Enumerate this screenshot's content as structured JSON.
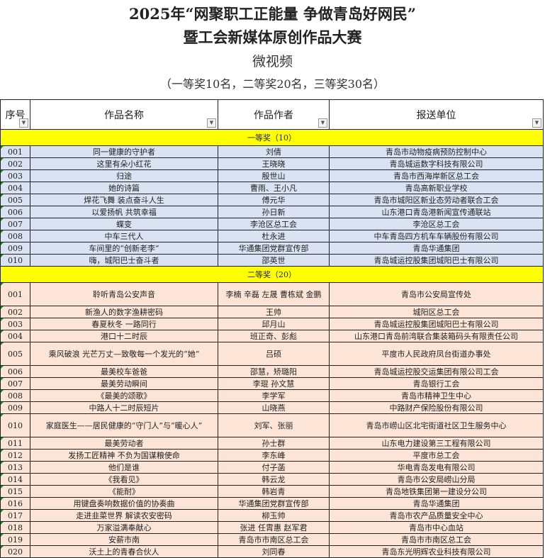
{
  "title": {
    "line1": "2025年“网聚职工正能量 争做青岛好网民”",
    "line2": "暨工会新媒体原创作品大赛",
    "category": "微视频",
    "awards_note": "（一等奖10名，二等奖20名，三等奖30名）"
  },
  "columns": [
    "序号",
    "作品名称",
    "作品作者",
    "报送单位"
  ],
  "icons": {
    "filter": "dropdown-filter-icon"
  },
  "colors": {
    "group_header": "#ffff00",
    "first_prize_rows": "#dae3f3",
    "second_prize_rows": "#fce4d6"
  },
  "groups": [
    {
      "label": "一等奖（10）",
      "rows": [
        [
          "001",
          "同一健康的守护者",
          "刘倩",
          "青岛市动物疫病预防控制中心"
        ],
        [
          "002",
          "这里有朵小红花",
          "王晓晓",
          "青岛城运数字科技有限公司"
        ],
        [
          "003",
          "归途",
          "殷世山",
          "青岛市西海岸新区总工会"
        ],
        [
          "004",
          "她的诗篇",
          "曹雨、王小凡",
          "青岛高新职业学校"
        ],
        [
          "005",
          "焊花飞舞 装点奋斗人生",
          "傅元华",
          "青岛市城阳区新业态劳动者联合工会"
        ],
        [
          "006",
          "以爱扬帆 共筑幸福",
          "孙日新",
          "山东港口青岛港新闻宣传通联站"
        ],
        [
          "007",
          "蝶变",
          "李沧区总工会",
          "李沧区总工会"
        ],
        [
          "008",
          "中车三代人",
          "杜永进",
          "中车青岛四方机车车辆股份有限公司"
        ],
        [
          "009",
          "车间里的“创新老李”",
          "华通集团党群宣传部",
          "青岛华通集团"
        ],
        [
          "010",
          "嗨，城阳巴士奋斗者",
          "邵英世",
          "青岛城运控股集团城阳巴士有限公司"
        ]
      ]
    },
    {
      "label": "二等奖（20）",
      "rows": [
        [
          "001",
          "聆听青岛公安声音",
          "李楠 辛磊 左晟 曹栋斌 金鹏",
          "青岛市公安局宣传处"
        ],
        [
          "002",
          "新渔人的数字渔耕密码",
          "王帅",
          "城阳区总工会"
        ],
        [
          "003",
          "春夏秋冬 一路同行",
          "邱月山",
          "青岛城运控股集团城阳巴士有限公司"
        ],
        [
          "004",
          "港口十二时辰",
          "班正奇、彭彪",
          "山东港口青岛前湾联合集装箱码头有限责任公司"
        ],
        [
          "005",
          "乘风破浪 光芒万丈—致敬每一个发光的“她”",
          "吕硕",
          "平度市人民政府凤台街道办事处"
        ],
        [
          "006",
          "最美校车爸爸",
          "邵慧，矫璐阳",
          "青岛城运控股交运集团有限公司工会"
        ],
        [
          "007",
          "最美劳动瞬间",
          "李琨 孙文慧",
          "青岛银行工会"
        ],
        [
          "008",
          "《最美的颂歌》",
          "李学军",
          "青岛市精神卫生中心"
        ],
        [
          "009",
          "中路人十二时辰短片",
          "山晓燕",
          "中路财产保险股份有限公司"
        ],
        [
          "010",
          "家庭医生——居民健康的“守门人”与“暖心人”",
          "刘军、张丽",
          "青岛市崂山区北宅街道社区卫生服务中心"
        ],
        [
          "011",
          "最美劳动者",
          "孙士群",
          "山东电力建设第三工程有限公司"
        ],
        [
          "012",
          "发扬工匠精神 不负为国谋粮使命",
          "李东峰",
          "平度市总工会"
        ],
        [
          "013",
          "他们是谁",
          "付子菡",
          "华电青岛发电有限公司"
        ],
        [
          "014",
          "《我看见》",
          "韩云龙",
          "青岛市公安局崂山分局"
        ],
        [
          "015",
          "《能耐》",
          "韩岩青",
          "青岛地铁集团第一建设分公司"
        ],
        [
          "016",
          "用键盘奏响数据价值的协奏曲",
          "华通集团党群宣传部",
          "青岛华通集团"
        ],
        [
          "017",
          "走进韭菜世界 解读农安密码",
          "柳玉帅",
          "青岛市农产品质量安全中心"
        ],
        [
          "018",
          "万家溢满奉献心",
          "张进 任霄惠 赵军君",
          "青岛市中心血站"
        ],
        [
          "019",
          "安薪市南",
          "青岛市市南区总工会",
          "青岛市市南区总工会"
        ],
        [
          "020",
          "沃土上的青春合伙人",
          "刘同春",
          "青岛东光明辉农业科技有限公司"
        ]
      ]
    }
  ]
}
